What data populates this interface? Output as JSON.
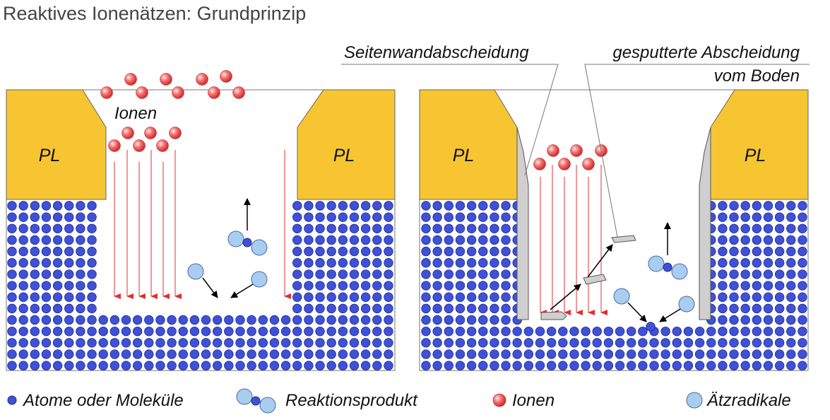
{
  "title": "Reaktives Ionenätzen: Grundprinzip",
  "labels": {
    "pl": "PL",
    "ionen_left": "Ionen",
    "sidewall": "Seitenwandabscheidung",
    "sputtered_line1": "gesputterte Abscheidung",
    "sputtered_line2": "vom Boden"
  },
  "legend": [
    {
      "symbol": "atom",
      "label": "Atome oder Moleküle"
    },
    {
      "symbol": "reaction-product",
      "label": "Reaktionsprodukt"
    },
    {
      "symbol": "ion",
      "label": "Ionen"
    },
    {
      "symbol": "radical",
      "label": "Ätzradikale"
    }
  ],
  "colors": {
    "atom": "#3f51d8",
    "atom_stroke": "#202a8a",
    "mask": "#f6c531",
    "ion": "#e83030",
    "ion_arrow": "#e03030",
    "radical": "#a8cdf0",
    "deposit": "#cfcfcf"
  },
  "icons": {
    "atom": "blue-circle",
    "ion": "red-gradient-circle",
    "radical": "light-blue-circle"
  }
}
